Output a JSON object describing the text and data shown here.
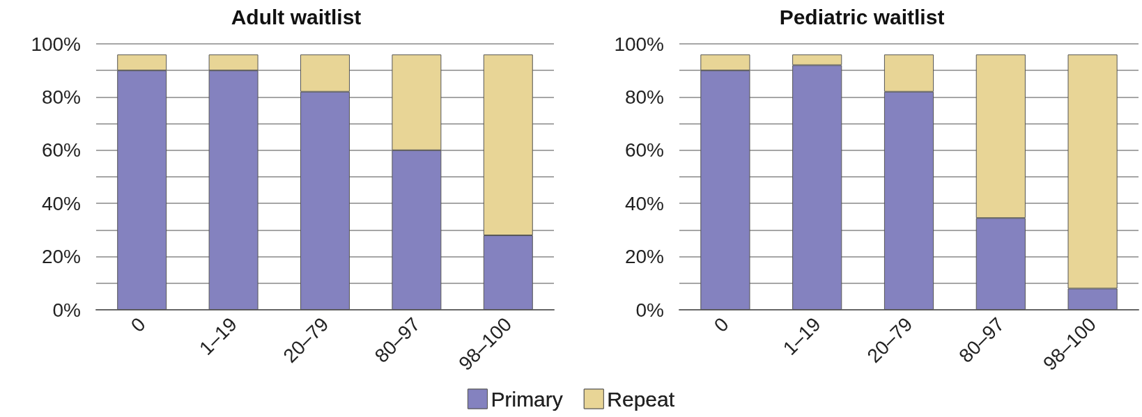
{
  "chart_data": [
    {
      "type": "bar",
      "title": "Adult waitlist",
      "categories": [
        "0",
        "1–19",
        "20–79",
        "80–97",
        "98–100"
      ],
      "stacked": true,
      "series": [
        {
          "name": "Primary",
          "color": "#8482bf",
          "values": [
            90,
            90,
            82,
            60,
            28
          ]
        },
        {
          "name": "Repeat",
          "color": "#e8d596",
          "values": [
            6,
            6,
            14,
            36,
            68
          ]
        }
      ],
      "ylim": [
        0,
        100
      ],
      "yticks": [
        {
          "value": 0,
          "label": "0%"
        },
        {
          "value": 10,
          "label": null
        },
        {
          "value": 20,
          "label": "20%"
        },
        {
          "value": 30,
          "label": null
        },
        {
          "value": 40,
          "label": "40%"
        },
        {
          "value": 50,
          "label": null
        },
        {
          "value": 60,
          "label": "60%"
        },
        {
          "value": 70,
          "label": null
        },
        {
          "value": 80,
          "label": "80%"
        },
        {
          "value": 90,
          "label": null
        },
        {
          "value": 100,
          "label": "100%"
        }
      ],
      "grid": "y",
      "legend": "bottom"
    },
    {
      "type": "bar",
      "title": "Pediatric waitlist",
      "categories": [
        "0",
        "1–19",
        "20–79",
        "80–97",
        "98–100"
      ],
      "stacked": true,
      "series": [
        {
          "name": "Primary",
          "color": "#8482bf",
          "values": [
            90,
            92,
            82,
            34.5,
            8
          ]
        },
        {
          "name": "Repeat",
          "color": "#e8d596",
          "values": [
            6,
            4,
            14,
            61.5,
            88
          ]
        }
      ],
      "ylim": [
        0,
        100
      ],
      "yticks": [
        {
          "value": 0,
          "label": "0%"
        },
        {
          "value": 10,
          "label": null
        },
        {
          "value": 20,
          "label": "20%"
        },
        {
          "value": 30,
          "label": null
        },
        {
          "value": 40,
          "label": "40%"
        },
        {
          "value": 50,
          "label": null
        },
        {
          "value": 60,
          "label": "60%"
        },
        {
          "value": 70,
          "label": null
        },
        {
          "value": 80,
          "label": "80%"
        },
        {
          "value": 90,
          "label": null
        },
        {
          "value": 100,
          "label": "100%"
        }
      ],
      "grid": "y",
      "legend": "bottom"
    }
  ]
}
